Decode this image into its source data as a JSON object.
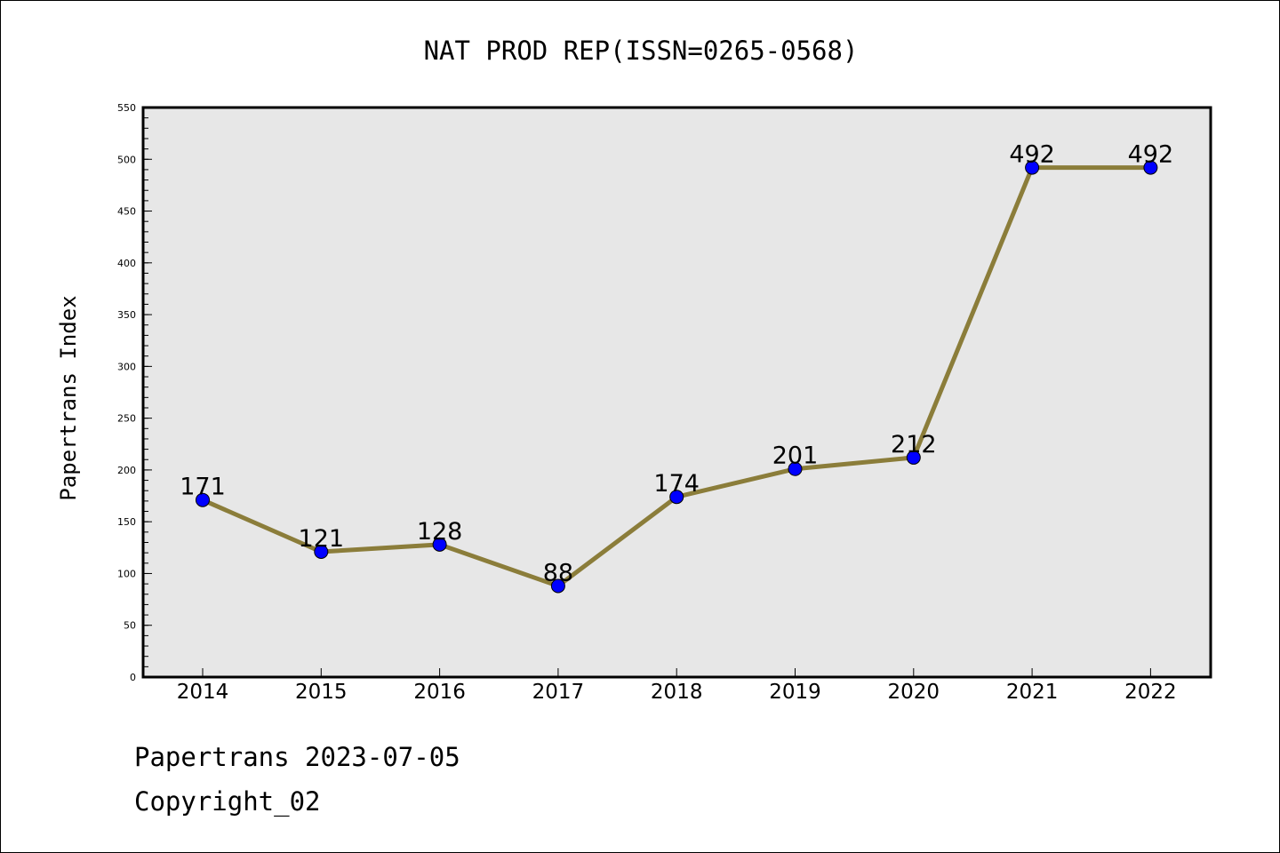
{
  "chart_data": {
    "type": "line",
    "title": "NAT PROD REP(ISSN=0265-0568)",
    "xlabel": "",
    "ylabel": "Papertrans Index",
    "categories": [
      "2014",
      "2015",
      "2016",
      "2017",
      "2018",
      "2019",
      "2020",
      "2021",
      "2022"
    ],
    "values": [
      171,
      121,
      128,
      88,
      174,
      201,
      212,
      492,
      492
    ],
    "data_labels": [
      "171",
      "121",
      "128",
      "88",
      "174",
      "201",
      "212",
      "492",
      "492"
    ],
    "ylim": [
      0,
      550
    ],
    "y_ticks": [
      0,
      50,
      100,
      150,
      200,
      250,
      300,
      350,
      400,
      450,
      500,
      550
    ],
    "y_tick_labels": [
      "0",
      "50",
      "100",
      "150",
      "200",
      "250",
      "300",
      "350",
      "400",
      "450",
      "500",
      "550"
    ],
    "grid": false,
    "legend": "none",
    "colors": {
      "line": "#8b7d3a",
      "marker": "#0000ff",
      "plot_bg": "#e7e7e7"
    }
  },
  "footer": {
    "line1": "Papertrans 2023-07-05",
    "line2": "Copyright_02"
  }
}
